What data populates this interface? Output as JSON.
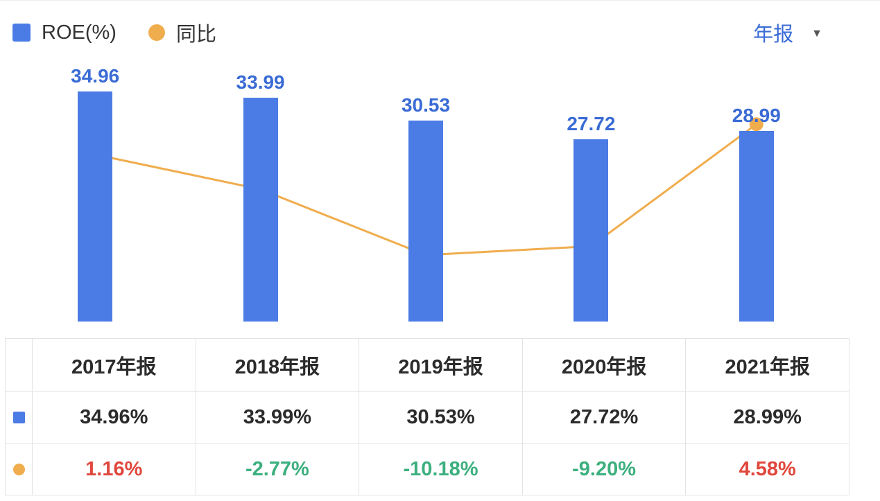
{
  "header": {
    "legend": [
      {
        "label": "ROE(%)",
        "marker": "square",
        "color": "#4b7be5"
      },
      {
        "label": "同比",
        "marker": "circle",
        "color": "#f0ad4e"
      }
    ],
    "period_selector": {
      "label": "年报",
      "caret": "▼"
    }
  },
  "chart_data": {
    "type": "combo-bar-line",
    "categories": [
      "2017年报",
      "2018年报",
      "2019年报",
      "2020年报",
      "2021年报"
    ],
    "series": [
      {
        "name": "ROE(%)",
        "kind": "bar",
        "color": "#4b7be5",
        "unit": "%",
        "values": [
          34.96,
          33.99,
          30.53,
          27.72,
          28.99
        ]
      },
      {
        "name": "同比",
        "kind": "line",
        "color": "#f0ad4e",
        "unit": "%",
        "values": [
          1.16,
          -2.77,
          -10.18,
          -9.2,
          4.58
        ]
      }
    ],
    "bar_axis_range": [
      0,
      36.9
    ],
    "grid": false,
    "legend_position": "top-left",
    "value_labels_shown": "bar-series-only"
  },
  "table": {
    "header": [
      "",
      "2017年报",
      "2018年报",
      "2019年报",
      "2020年报",
      "2021年报"
    ],
    "rows": [
      {
        "series": "ROE(%)",
        "marker": "square",
        "color": "#4b7be5",
        "cells": [
          "34.96%",
          "33.99%",
          "30.53%",
          "27.72%",
          "28.99%"
        ],
        "trend": [
          null,
          null,
          null,
          null,
          null
        ]
      },
      {
        "series": "同比",
        "marker": "circle",
        "color": "#f0ad4e",
        "cells": [
          "1.16%",
          "-2.77%",
          "-10.18%",
          "-9.20%",
          "4.58%"
        ],
        "trend": [
          "up",
          "down",
          "down",
          "down",
          "up"
        ]
      }
    ]
  },
  "colors": {
    "bar": "#4b7be5",
    "line": "#f0ad4e",
    "bar_label": "#3a6bd5",
    "up": "#e0473c",
    "down": "#3caf7e",
    "text": "#2b2b2b",
    "border": "#e3e3e3",
    "period_link": "#3a6bd5"
  }
}
